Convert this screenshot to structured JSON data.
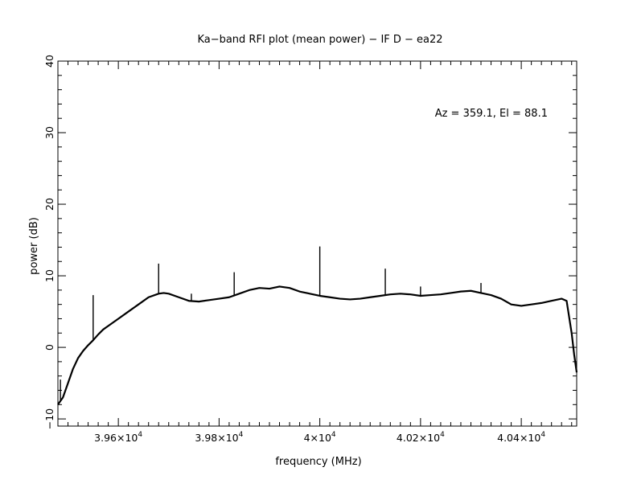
{
  "chart_data": {
    "type": "line",
    "title": "Ka−band RFI plot (mean power) − IF D − ea22",
    "xlabel": "frequency (MHz)",
    "ylabel": "power (dB)",
    "annotation": "Az = 359.1, El = 88.1",
    "xlim": [
      39480,
      40510
    ],
    "ylim": [
      -11,
      40
    ],
    "x_ticks": [
      {
        "value": 39600,
        "mant": "3.96×10",
        "exp": "4"
      },
      {
        "value": 39800,
        "mant": "3.98×10",
        "exp": "4"
      },
      {
        "value": 40000,
        "mant": "4×10",
        "exp": "4"
      },
      {
        "value": 40200,
        "mant": "4.02×10",
        "exp": "4"
      },
      {
        "value": 40400,
        "mant": "4.04×10",
        "exp": "4"
      }
    ],
    "y_ticks": [
      {
        "value": -10,
        "label": "−10"
      },
      {
        "value": 0,
        "label": "0"
      },
      {
        "value": 10,
        "label": "10"
      },
      {
        "value": 20,
        "label": "20"
      },
      {
        "value": 30,
        "label": "30"
      },
      {
        "value": 40,
        "label": "40"
      }
    ],
    "series": [
      {
        "color": "#000000",
        "x": [
          39480,
          39490,
          39500,
          39510,
          39520,
          39530,
          39540,
          39550,
          39560,
          39570,
          39580,
          39600,
          39620,
          39640,
          39660,
          39680,
          39690,
          39700,
          39720,
          39740,
          39760,
          39780,
          39800,
          39820,
          39840,
          39860,
          39880,
          39900,
          39920,
          39940,
          39960,
          39980,
          40000,
          40020,
          40040,
          40060,
          40080,
          40100,
          40120,
          40140,
          40160,
          40180,
          40200,
          40220,
          40240,
          40260,
          40280,
          40300,
          40320,
          40340,
          40360,
          40380,
          40400,
          40420,
          40440,
          40460,
          40480,
          40490,
          40500,
          40505,
          40510
        ],
        "y": [
          -8.0,
          -7.0,
          -5.0,
          -3.0,
          -1.5,
          -0.5,
          0.3,
          1.0,
          1.8,
          2.5,
          3.0,
          4.0,
          5.0,
          6.0,
          7.0,
          7.5,
          7.6,
          7.5,
          7.0,
          6.5,
          6.4,
          6.6,
          6.8,
          7.0,
          7.5,
          8.0,
          8.3,
          8.2,
          8.5,
          8.3,
          7.8,
          7.5,
          7.2,
          7.0,
          6.8,
          6.7,
          6.8,
          7.0,
          7.2,
          7.4,
          7.5,
          7.4,
          7.2,
          7.3,
          7.4,
          7.6,
          7.8,
          7.9,
          7.6,
          7.3,
          6.8,
          6.0,
          5.8,
          6.0,
          6.2,
          6.5,
          6.8,
          6.5,
          2.0,
          -1.0,
          -3.5
        ],
        "spikes": [
          {
            "x": 39485,
            "y": -4.5
          },
          {
            "x": 39550,
            "y": 7.3
          },
          {
            "x": 39680,
            "y": 11.7
          },
          {
            "x": 39745,
            "y": 7.5
          },
          {
            "x": 39830,
            "y": 10.5
          },
          {
            "x": 40000,
            "y": 14.1
          },
          {
            "x": 40130,
            "y": 11.0
          },
          {
            "x": 40200,
            "y": 8.5
          },
          {
            "x": 40320,
            "y": 9.0
          }
        ]
      }
    ]
  }
}
